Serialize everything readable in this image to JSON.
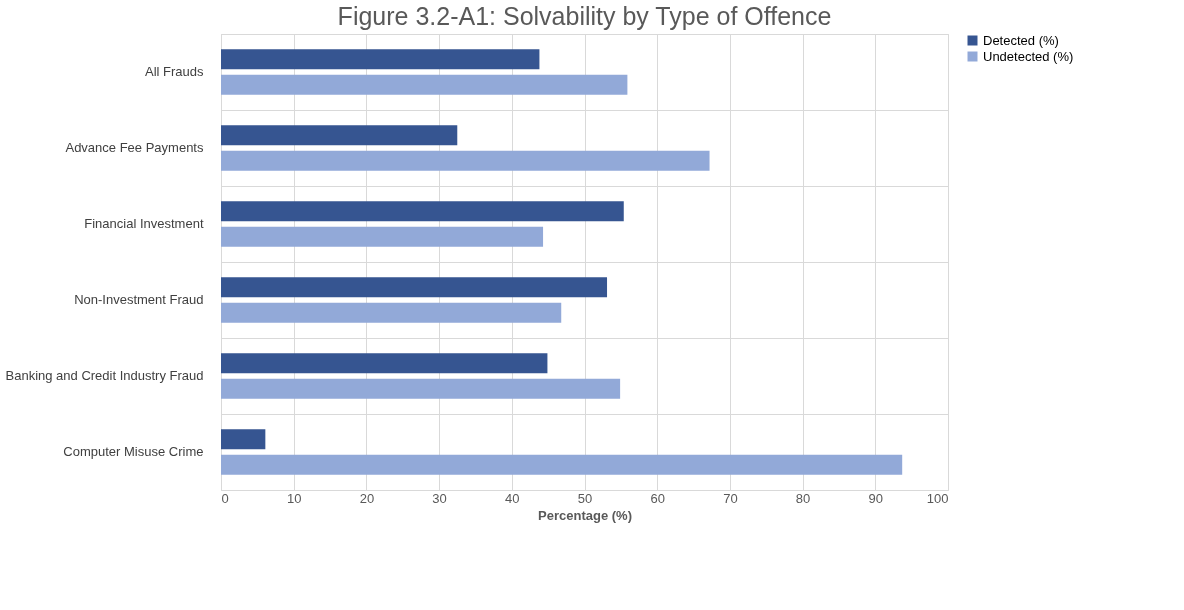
{
  "chart_data": {
    "type": "bar",
    "orientation": "horizontal",
    "title": "Figure 3.2-A1: Solvability by Type of Offence",
    "xlabel": "Percentage (%)",
    "categories": [
      "All Frauds",
      "Advance Fee Payments",
      "Financial Investment",
      "Non-Investment Fraud",
      "Banking and Credit Industry Fraud",
      "Computer Misuse Crime"
    ],
    "series": [
      {
        "name": "Detected (%)",
        "color": "#365591",
        "values": [
          43.8,
          32.5,
          55.4,
          53.1,
          44.9,
          6.1
        ]
      },
      {
        "name": "Undetected (%)",
        "color": "#92a9d8",
        "values": [
          55.9,
          67.2,
          44.3,
          46.8,
          54.9,
          93.7
        ]
      }
    ],
    "xlim": [
      0,
      100
    ],
    "xticks": [
      0,
      10,
      20,
      30,
      40,
      50,
      60,
      70,
      80,
      90,
      100
    ],
    "grid": true,
    "legend": "right"
  }
}
